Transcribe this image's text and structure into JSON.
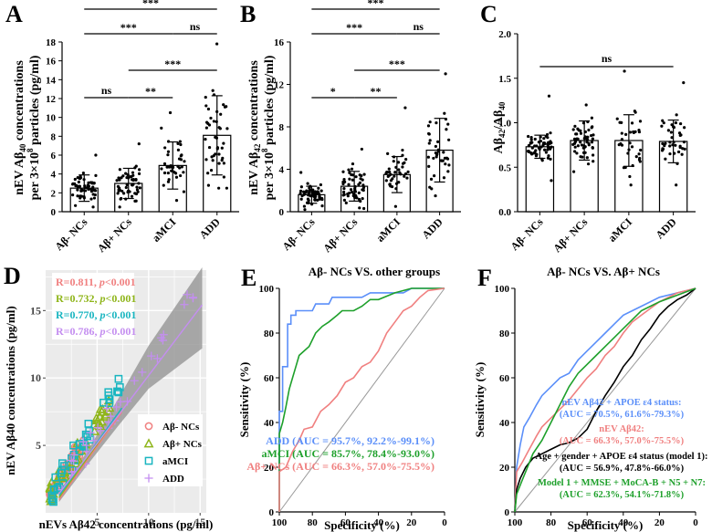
{
  "chart_data": [
    {
      "panel": "A",
      "type": "bar",
      "ylabel_parts": [
        "nEV Aβ",
        "40",
        " concentrations",
        "per 3×10",
        "8",
        " particles (pg/ml)"
      ],
      "ylim": [
        0,
        18
      ],
      "yticks": [
        0,
        2,
        4,
        6,
        8,
        10,
        12,
        14,
        16,
        18
      ],
      "categories": [
        "Aβ- NCs",
        "Aβ+ NCs",
        "aMCI",
        "ADD"
      ],
      "values": [
        2.5,
        3.0,
        4.9,
        8.1
      ],
      "sd": [
        1.4,
        1.6,
        2.5,
        4.2
      ],
      "points_range": [
        [
          0.5,
          6.0
        ],
        [
          0.5,
          7.2
        ],
        [
          1.2,
          10.5
        ],
        [
          2.5,
          17.8
        ]
      ],
      "points_n": [
        60,
        55,
        40,
        45
      ],
      "comparisons": [
        {
          "from": 0,
          "to": 3,
          "label": "***"
        },
        {
          "from": 0,
          "to": 2,
          "label": "***"
        },
        {
          "from": 2,
          "to": 3,
          "label": "ns"
        },
        {
          "from": 1,
          "to": 3,
          "label": "***"
        },
        {
          "from": 0,
          "to": 1,
          "label": "ns"
        },
        {
          "from": 1,
          "to": 2,
          "label": "**"
        }
      ]
    },
    {
      "panel": "B",
      "type": "bar",
      "ylabel_parts": [
        "nEV Aβ",
        "42",
        " concentrations",
        "per 3×10",
        "8",
        " particles (pg/ml)"
      ],
      "ylim": [
        0,
        16
      ],
      "yticks": [
        0,
        4,
        8,
        12,
        16
      ],
      "categories": [
        "Aβ- NCs",
        "Aβ+ NCs",
        "aMCI",
        "ADD"
      ],
      "values": [
        1.6,
        2.4,
        3.5,
        5.8
      ],
      "sd": [
        0.8,
        1.4,
        1.7,
        3.0
      ],
      "points_range": [
        [
          0.2,
          3.7
        ],
        [
          0.3,
          5.9
        ],
        [
          0.5,
          9.8
        ],
        [
          1.5,
          13.0
        ]
      ],
      "points_n": [
        60,
        55,
        40,
        40
      ],
      "comparisons": [
        {
          "from": 0,
          "to": 3,
          "label": "***"
        },
        {
          "from": 0,
          "to": 2,
          "label": "***"
        },
        {
          "from": 2,
          "to": 3,
          "label": "ns"
        },
        {
          "from": 1,
          "to": 3,
          "label": "***"
        },
        {
          "from": 0,
          "to": 1,
          "label": "*"
        },
        {
          "from": 1,
          "to": 2,
          "label": "**"
        }
      ]
    },
    {
      "panel": "C",
      "type": "bar",
      "ylabel_parts": [
        "Aβ",
        "42",
        "/Aβ",
        "40"
      ],
      "ylim": [
        0,
        2.0
      ],
      "yticks": [
        0.0,
        0.5,
        1.0,
        1.5,
        2.0
      ],
      "categories": [
        "Aβ- NCs",
        "Aβ+ NCs",
        "aMCI",
        "ADD"
      ],
      "values": [
        0.73,
        0.8,
        0.8,
        0.79
      ],
      "sd": [
        0.13,
        0.22,
        0.29,
        0.24
      ],
      "points_range": [
        [
          0.35,
          1.3
        ],
        [
          0.45,
          1.2
        ],
        [
          0.3,
          1.58
        ],
        [
          0.3,
          1.45
        ]
      ],
      "points_n": [
        60,
        55,
        35,
        40
      ],
      "comparisons": [
        {
          "from": 0,
          "to": 3,
          "label": "ns"
        }
      ]
    },
    {
      "panel": "D",
      "type": "scatter",
      "xlabel": "nEVs Aβ42 concentrations (pg/ml)",
      "ylabel": "nEV Aβ40 concentrations (pg/ml)",
      "xlim": [
        0,
        15.6
      ],
      "ylim": [
        0,
        18
      ],
      "xticks": [
        5,
        10,
        15
      ],
      "yticks": [
        5,
        10,
        15
      ],
      "correlations": [
        {
          "r_text": "R=0.811, ",
          "p_text": "p",
          "p_rest": "<0.001",
          "color": "#f08080"
        },
        {
          "r_text": "R=0.732, ",
          "p_text": "p",
          "p_rest": "<0.001",
          "color": "#8fb51a"
        },
        {
          "r_text": "R=0.770, ",
          "p_text": "p",
          "p_rest": "<0.001",
          "color": "#19b5c0"
        },
        {
          "r_text": "R=0.786, ",
          "p_text": "p",
          "p_rest": "<0.001",
          "color": "#c48ef0"
        }
      ],
      "legend": [
        {
          "name": "Aβ- NCs",
          "marker": "circle",
          "color": "#f08080"
        },
        {
          "name": "Aβ+ NCs",
          "marker": "triangle",
          "color": "#8fb51a"
        },
        {
          "name": "aMCI",
          "marker": "square",
          "color": "#19b5c0"
        },
        {
          "name": "ADD",
          "marker": "cross",
          "color": "#c48ef0"
        }
      ],
      "fit": {
        "x0": 1.3,
        "y0": 1.2,
        "x1": 15.2,
        "y1": 15.2
      },
      "groups": [
        {
          "marker": "circle",
          "color": "#f08080",
          "count": 50,
          "xrange": [
            0.4,
            3.8
          ],
          "slope": 1.25,
          "noise": 1.1
        },
        {
          "marker": "triangle",
          "color": "#8fb51a",
          "count": 45,
          "xrange": [
            0.4,
            6.5
          ],
          "slope": 1.2,
          "noise": 1.5
        },
        {
          "marker": "square",
          "color": "#19b5c0",
          "count": 38,
          "xrange": [
            0.6,
            7.5
          ],
          "slope": 1.25,
          "noise": 1.8
        },
        {
          "marker": "cross",
          "color": "#c48ef0",
          "count": 35,
          "xrange": [
            1.5,
            14.8
          ],
          "slope": 1.05,
          "noise": 2.0
        }
      ]
    },
    {
      "panel": "E",
      "type": "line",
      "title": "Aβ- NCs VS. other groups",
      "xlabel": "Specificity (%)",
      "ylabel": "Sensitivity (%)",
      "xlim": [
        100,
        0
      ],
      "ylim": [
        0,
        100
      ],
      "xticks": [
        100,
        80,
        60,
        40,
        20,
        0
      ],
      "yticks": [
        0,
        20,
        40,
        60,
        80,
        100
      ],
      "series": [
        {
          "legend": "ADD (AUC = 95.7%, 92.2%-99.1%)",
          "color": "#5b8ff9",
          "points": [
            [
              100,
              0
            ],
            [
              100,
              45
            ],
            [
              98,
              45
            ],
            [
              98,
              65
            ],
            [
              95,
              65
            ],
            [
              95,
              84
            ],
            [
              93,
              84
            ],
            [
              93,
              88
            ],
            [
              90,
              88
            ],
            [
              90,
              90
            ],
            [
              80,
              90
            ],
            [
              78,
              93
            ],
            [
              70,
              93
            ],
            [
              68,
              96
            ],
            [
              50,
              96
            ],
            [
              45,
              98
            ],
            [
              25,
              98
            ],
            [
              20,
              100
            ],
            [
              0,
              100
            ]
          ]
        },
        {
          "legend": "aMCI (AUC = 85.7%, 78.4%-93.0%)",
          "color": "#1ea02b",
          "points": [
            [
              100,
              0
            ],
            [
              100,
              35
            ],
            [
              98,
              40
            ],
            [
              96,
              47
            ],
            [
              94,
              55
            ],
            [
              92,
              60
            ],
            [
              90,
              65
            ],
            [
              88,
              70
            ],
            [
              85,
              72
            ],
            [
              82,
              74
            ],
            [
              78,
              80
            ],
            [
              74,
              83
            ],
            [
              70,
              85
            ],
            [
              65,
              88
            ],
            [
              62,
              90
            ],
            [
              55,
              90
            ],
            [
              50,
              92
            ],
            [
              45,
              95
            ],
            [
              40,
              95
            ],
            [
              30,
              98
            ],
            [
              20,
              100
            ],
            [
              0,
              100
            ]
          ]
        },
        {
          "legend": "Aβ+ NCs (AUC = 66.3%, 57.0%-75.5%)",
          "color": "#f08080",
          "points": [
            [
              100,
              0
            ],
            [
              100,
              18
            ],
            [
              96,
              20
            ],
            [
              92,
              27
            ],
            [
              88,
              32
            ],
            [
              85,
              37
            ],
            [
              80,
              38
            ],
            [
              75,
              45
            ],
            [
              70,
              48
            ],
            [
              65,
              52
            ],
            [
              60,
              58
            ],
            [
              55,
              60
            ],
            [
              50,
              65
            ],
            [
              45,
              67
            ],
            [
              40,
              72
            ],
            [
              35,
              80
            ],
            [
              30,
              85
            ],
            [
              25,
              90
            ],
            [
              20,
              92
            ],
            [
              15,
              96
            ],
            [
              10,
              99
            ],
            [
              0,
              100
            ]
          ]
        }
      ]
    },
    {
      "panel": "F",
      "type": "line",
      "title": "Aβ- NCs VS. Aβ+ NCs",
      "xlabel": "Specificity (%)",
      "ylabel": "Sensitivity (%)",
      "xlim": [
        100,
        0
      ],
      "ylim": [
        0,
        100
      ],
      "xticks": [
        100,
        80,
        60,
        40,
        20,
        0
      ],
      "yticks": [
        0,
        20,
        40,
        60,
        80,
        100
      ],
      "series": [
        {
          "legend": "nEV Aβ42 + APOE ε4 status: (AUC = 70.5%, 61.6%-79.3%)",
          "color": "#5b8ff9",
          "points": [
            [
              100,
              0
            ],
            [
              99,
              20
            ],
            [
              97,
              30
            ],
            [
              95,
              38
            ],
            [
              92,
              42
            ],
            [
              88,
              48
            ],
            [
              85,
              52
            ],
            [
              80,
              56
            ],
            [
              75,
              60
            ],
            [
              70,
              62
            ],
            [
              65,
              68
            ],
            [
              60,
              72
            ],
            [
              55,
              76
            ],
            [
              50,
              80
            ],
            [
              45,
              84
            ],
            [
              40,
              88
            ],
            [
              35,
              90
            ],
            [
              30,
              92
            ],
            [
              20,
              96
            ],
            [
              10,
              98
            ],
            [
              0,
              100
            ]
          ]
        },
        {
          "legend": "nEV Aβ42: (AUC = 66.3%, 57.0%-75.5%)",
          "color": "#f08080",
          "points": [
            [
              100,
              0
            ],
            [
              99,
              18
            ],
            [
              96,
              22
            ],
            [
              92,
              28
            ],
            [
              88,
              34
            ],
            [
              85,
              38
            ],
            [
              80,
              42
            ],
            [
              75,
              46
            ],
            [
              70,
              50
            ],
            [
              65,
              55
            ],
            [
              60,
              60
            ],
            [
              55,
              64
            ],
            [
              50,
              70
            ],
            [
              45,
              74
            ],
            [
              40,
              80
            ],
            [
              35,
              85
            ],
            [
              30,
              88
            ],
            [
              25,
              91
            ],
            [
              20,
              94
            ],
            [
              10,
              98
            ],
            [
              0,
              100
            ]
          ]
        },
        {
          "legend": "Age + gender + APOE ε4 status (model 1): (AUC = 56.9%, 47.8%-66.0%)",
          "color": "#000000",
          "points": [
            [
              100,
              0
            ],
            [
              99,
              10
            ],
            [
              97,
              15
            ],
            [
              94,
              20
            ],
            [
              90,
              24
            ],
            [
              85,
              26
            ],
            [
              80,
              28
            ],
            [
              75,
              30
            ],
            [
              70,
              31
            ],
            [
              65,
              33
            ],
            [
              60,
              37
            ],
            [
              55,
              45
            ],
            [
              50,
              52
            ],
            [
              45,
              58
            ],
            [
              40,
              65
            ],
            [
              35,
              70
            ],
            [
              30,
              77
            ],
            [
              25,
              82
            ],
            [
              20,
              88
            ],
            [
              15,
              92
            ],
            [
              10,
              95
            ],
            [
              5,
              97
            ],
            [
              0,
              100
            ]
          ]
        },
        {
          "legend": "Model 1 + MMSE + MoCA-B + N5 + N7: (AUC = 62.3%, 54.1%-71.8%)",
          "color": "#1ea02b",
          "points": [
            [
              100,
              0
            ],
            [
              99,
              8
            ],
            [
              96,
              14
            ],
            [
              93,
              20
            ],
            [
              90,
              26
            ],
            [
              85,
              32
            ],
            [
              80,
              40
            ],
            [
              75,
              48
            ],
            [
              70,
              56
            ],
            [
              65,
              62
            ],
            [
              60,
              66
            ],
            [
              55,
              70
            ],
            [
              50,
              74
            ],
            [
              45,
              78
            ],
            [
              40,
              82
            ],
            [
              35,
              86
            ],
            [
              30,
              90
            ],
            [
              25,
              92
            ],
            [
              20,
              94
            ],
            [
              10,
              97
            ],
            [
              0,
              100
            ]
          ]
        }
      ]
    }
  ]
}
